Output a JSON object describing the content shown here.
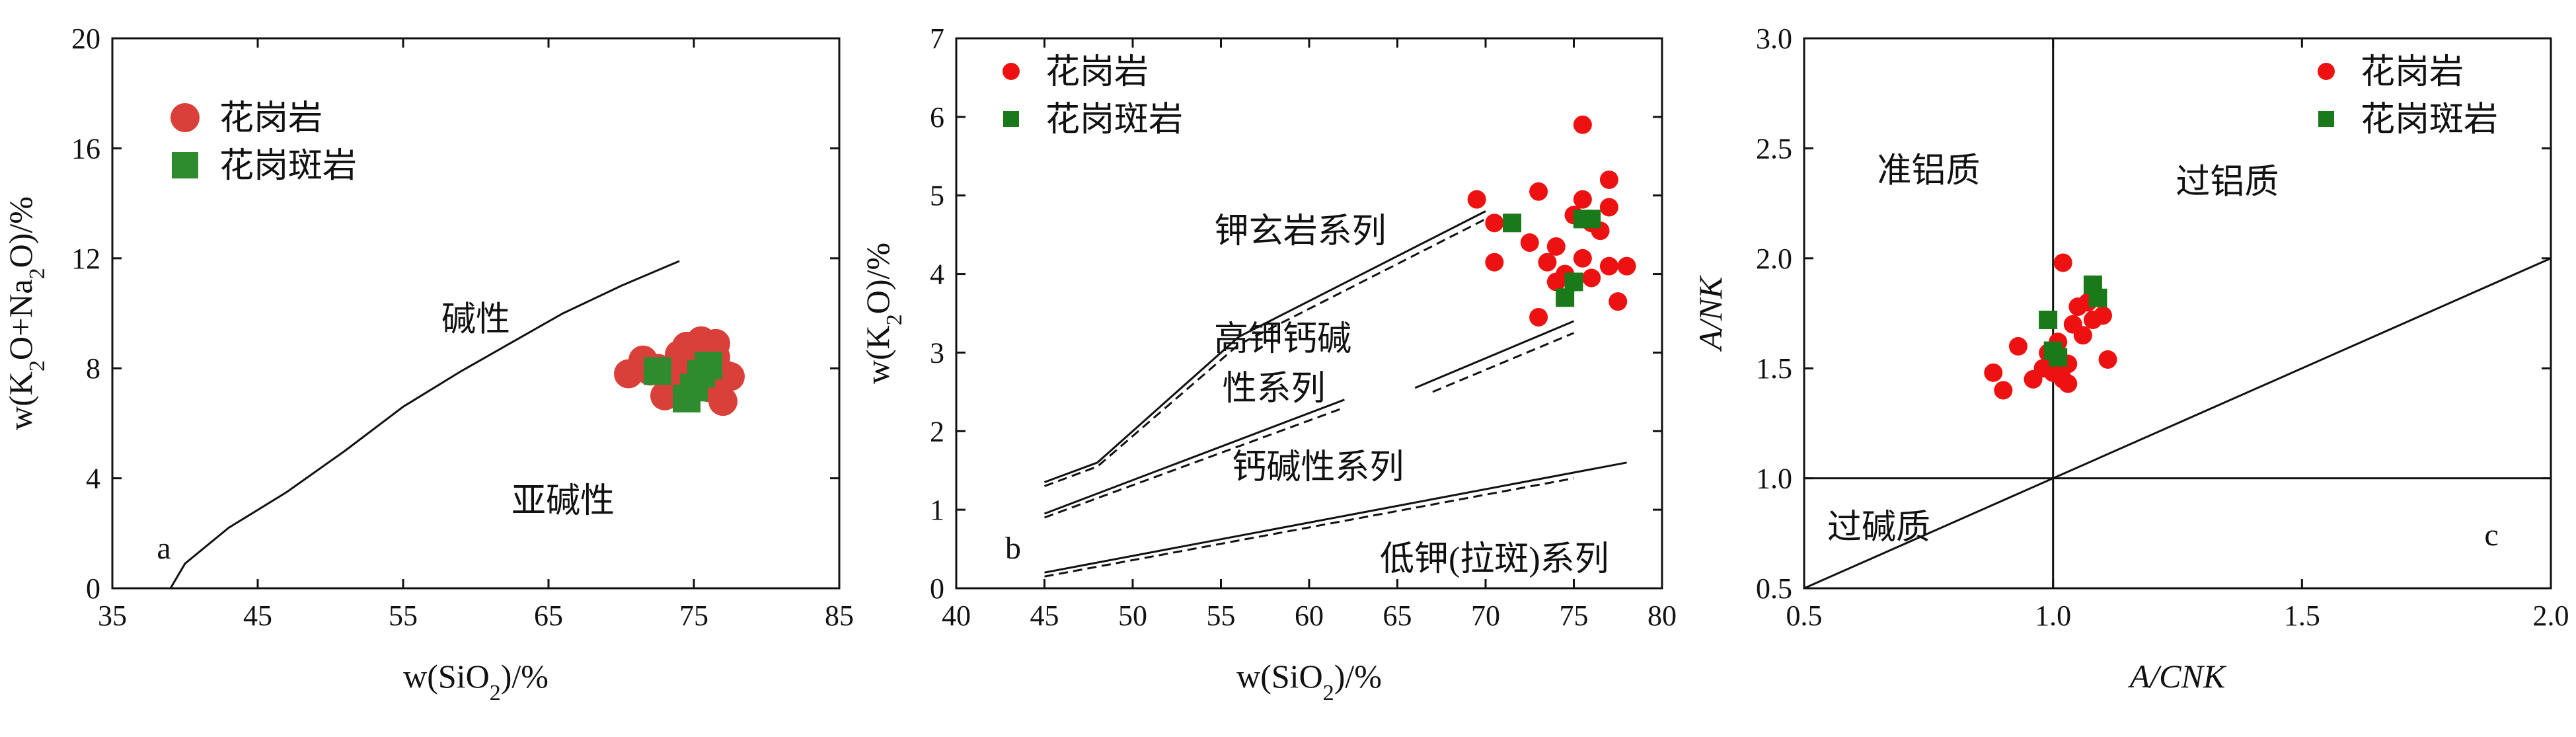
{
  "chart_data": [
    {
      "type": "scatter",
      "panel_label": "a",
      "xlabel": "w(SiO2)/%",
      "ylabel": "w(K2O+Na2O)/%",
      "xlim": [
        35,
        85
      ],
      "ylim": [
        0,
        20
      ],
      "x_ticks": [
        35,
        45,
        55,
        65,
        75,
        85
      ],
      "y_ticks": [
        0,
        4,
        8,
        12,
        16,
        20
      ],
      "legend": {
        "position": "top-left",
        "entries": [
          "花岗岩",
          "花岗斑岩"
        ]
      },
      "region_labels": [
        {
          "text": "碱性",
          "x": 60,
          "y": 9.8
        },
        {
          "text": "亚碱性",
          "x": 66,
          "y": 3.2
        }
      ],
      "boundary_lines": [
        {
          "name": "alkaline-subalkaline-boundary",
          "style": "solid",
          "points": [
            [
              39,
              0
            ],
            [
              40,
              0.9
            ],
            [
              43,
              2.2
            ],
            [
              47,
              3.5
            ],
            [
              51,
              5.0
            ],
            [
              55,
              6.6
            ],
            [
              59,
              7.9
            ],
            [
              63,
              9.1
            ],
            [
              66,
              10.0
            ],
            [
              70,
              11.0
            ],
            [
              74,
              11.9
            ]
          ]
        }
      ],
      "series": [
        {
          "name": "花岗岩",
          "marker": "circle",
          "color": "#d9403a",
          "points": [
            [
              70.5,
              7.8
            ],
            [
              71.5,
              8.3
            ],
            [
              72.5,
              8.0
            ],
            [
              73.5,
              7.5
            ],
            [
              74,
              8.5
            ],
            [
              74.5,
              8.8
            ],
            [
              75,
              8.2
            ],
            [
              75.5,
              9.0
            ],
            [
              76,
              8.6
            ],
            [
              76.5,
              8.4
            ],
            [
              77,
              7.8
            ],
            [
              77.5,
              7.7
            ],
            [
              73,
              7.0
            ],
            [
              74,
              7.6
            ],
            [
              76,
              7.3
            ],
            [
              75,
              7.4
            ],
            [
              77,
              6.8
            ],
            [
              76.5,
              8.9
            ],
            [
              74.5,
              7.2
            ],
            [
              72,
              7.9
            ],
            [
              75.5,
              8.0
            ]
          ]
        },
        {
          "name": "花岗斑岩",
          "marker": "square",
          "color": "#2e8b2e",
          "points": [
            [
              72.5,
              7.9
            ],
            [
              74.5,
              6.9
            ],
            [
              75.5,
              7.8
            ],
            [
              76,
              8.1
            ],
            [
              75,
              7.3
            ]
          ]
        }
      ]
    },
    {
      "type": "scatter",
      "panel_label": "b",
      "xlabel": "w(SiO2)/%",
      "ylabel": "w(K2O)/%",
      "xlim": [
        40,
        80
      ],
      "ylim": [
        0,
        7
      ],
      "x_ticks": [
        40,
        45,
        50,
        55,
        60,
        65,
        70,
        75,
        80
      ],
      "y_ticks": [
        0,
        1,
        2,
        3,
        4,
        5,
        6,
        7
      ],
      "legend": {
        "position": "top-left",
        "entries": [
          "花岗岩",
          "花岗斑岩"
        ]
      },
      "region_labels": [
        {
          "text": "钾玄岩系列",
          "x": 59.5,
          "y": 4.55
        },
        {
          "text": "高钾钙碱",
          "x": 58.5,
          "y": 3.18
        },
        {
          "text": "性系列",
          "x": 58.0,
          "y": 2.55
        },
        {
          "text": "钙碱性系列",
          "x": 60.5,
          "y": 1.55
        },
        {
          "text": "低钾(拉斑)系列",
          "x": 70.5,
          "y": 0.38
        }
      ],
      "boundary_lines": [
        {
          "name": "shoshonite-upper-solid",
          "style": "solid",
          "points": [
            [
              45,
              1.35
            ],
            [
              48,
              1.6
            ],
            [
              56,
              3.2
            ],
            [
              70,
              4.8
            ]
          ]
        },
        {
          "name": "shoshonite-upper-dashed",
          "style": "dashed",
          "points": [
            [
              45,
              1.3
            ],
            [
              48,
              1.55
            ],
            [
              56,
              3.1
            ],
            [
              70,
              4.7
            ]
          ]
        },
        {
          "name": "high-k-lower-solid",
          "style": "solid",
          "points": [
            [
              45,
              0.95
            ],
            [
              62,
              2.4
            ]
          ]
        },
        {
          "name": "high-k-lower-solid-2",
          "style": "solid",
          "points": [
            [
              66,
              2.55
            ],
            [
              75,
              3.4
            ]
          ]
        },
        {
          "name": "high-k-lower-dashed",
          "style": "dashed",
          "points": [
            [
              45,
              0.9
            ],
            [
              62,
              2.3
            ]
          ]
        },
        {
          "name": "high-k-lower-dashed-2",
          "style": "dashed",
          "points": [
            [
              67,
              2.5
            ],
            [
              75,
              3.25
            ]
          ]
        },
        {
          "name": "calc-alkaline-lower-solid",
          "style": "solid",
          "points": [
            [
              45,
              0.2
            ],
            [
              78,
              1.6
            ]
          ]
        },
        {
          "name": "calc-alkaline-lower-dashed",
          "style": "dashed",
          "points": [
            [
              45,
              0.15
            ],
            [
              75,
              1.4
            ]
          ]
        }
      ],
      "series": [
        {
          "name": "花岗岩",
          "marker": "circle",
          "color": "#ee1111",
          "points": [
            [
              69.5,
              4.95
            ],
            [
              70.5,
              4.65
            ],
            [
              72.5,
              4.4
            ],
            [
              73,
              5.05
            ],
            [
              73.5,
              4.15
            ],
            [
              74,
              4.35
            ],
            [
              75.5,
              5.9
            ],
            [
              75.5,
              4.95
            ],
            [
              76,
              4.65
            ],
            [
              76.5,
              4.55
            ],
            [
              77,
              4.85
            ],
            [
              77,
              5.2
            ],
            [
              77,
              4.1
            ],
            [
              77.5,
              3.65
            ],
            [
              78,
              4.1
            ],
            [
              73,
              3.45
            ],
            [
              74.5,
              4.0
            ],
            [
              75.5,
              4.2
            ],
            [
              76,
              3.95
            ],
            [
              75,
              4.75
            ],
            [
              74,
              3.9
            ],
            [
              70.5,
              4.15
            ]
          ]
        },
        {
          "name": "花岗斑岩",
          "marker": "square",
          "color": "#1a7a1a",
          "points": [
            [
              71.5,
              4.65
            ],
            [
              74.5,
              3.7
            ],
            [
              75,
              3.9
            ],
            [
              75.5,
              4.7
            ],
            [
              76,
              4.7
            ]
          ]
        }
      ]
    },
    {
      "type": "scatter",
      "panel_label": "c",
      "xlabel": "A/CNK",
      "ylabel": "A/NK",
      "xlim": [
        0.5,
        2.0
      ],
      "ylim": [
        0.5,
        3.0
      ],
      "x_ticks": [
        0.5,
        1.0,
        1.5,
        2.0
      ],
      "y_ticks": [
        0.5,
        1.0,
        1.5,
        2.0,
        2.5,
        3.0
      ],
      "legend": {
        "position": "top-right",
        "entries": [
          "花岗岩",
          "花岗斑岩"
        ]
      },
      "region_labels": [
        {
          "text": "准铝质",
          "x": 0.75,
          "y": 2.4
        },
        {
          "text": "过铝质",
          "x": 1.35,
          "y": 2.35
        },
        {
          "text": "过碱质",
          "x": 0.65,
          "y": 0.78
        }
      ],
      "boundary_lines": [
        {
          "name": "vertical-acnk-1",
          "style": "solid",
          "points": [
            [
              1.0,
              0.5
            ],
            [
              1.0,
              3.0
            ]
          ]
        },
        {
          "name": "horizontal-ank-1",
          "style": "solid",
          "points": [
            [
              0.5,
              1.0
            ],
            [
              2.0,
              1.0
            ]
          ]
        },
        {
          "name": "diagonal-line",
          "style": "solid",
          "points": [
            [
              0.5,
              0.5
            ],
            [
              2.0,
              2.0
            ]
          ]
        }
      ],
      "series": [
        {
          "name": "花岗岩",
          "marker": "circle",
          "color": "#ee1111",
          "points": [
            [
              0.88,
              1.48
            ],
            [
              0.9,
              1.4
            ],
            [
              0.93,
              1.6
            ],
            [
              0.96,
              1.45
            ],
            [
              0.98,
              1.5
            ],
            [
              0.99,
              1.57
            ],
            [
              1.0,
              1.55
            ],
            [
              1.01,
              1.62
            ],
            [
              1.02,
              1.98
            ],
            [
              1.02,
              1.45
            ],
            [
              1.03,
              1.52
            ],
            [
              1.04,
              1.7
            ],
            [
              1.05,
              1.78
            ],
            [
              1.06,
              1.65
            ],
            [
              1.07,
              1.8
            ],
            [
              1.08,
              1.72
            ],
            [
              1.09,
              1.82
            ],
            [
              1.1,
              1.74
            ],
            [
              1.11,
              1.54
            ],
            [
              1.0,
              1.48
            ],
            [
              1.03,
              1.43
            ]
          ]
        },
        {
          "name": "花岗斑岩",
          "marker": "square",
          "color": "#1a7a1a",
          "points": [
            [
              0.99,
              1.72
            ],
            [
              1.0,
              1.58
            ],
            [
              1.01,
              1.55
            ],
            [
              1.08,
              1.88
            ],
            [
              1.09,
              1.82
            ]
          ]
        }
      ]
    }
  ]
}
